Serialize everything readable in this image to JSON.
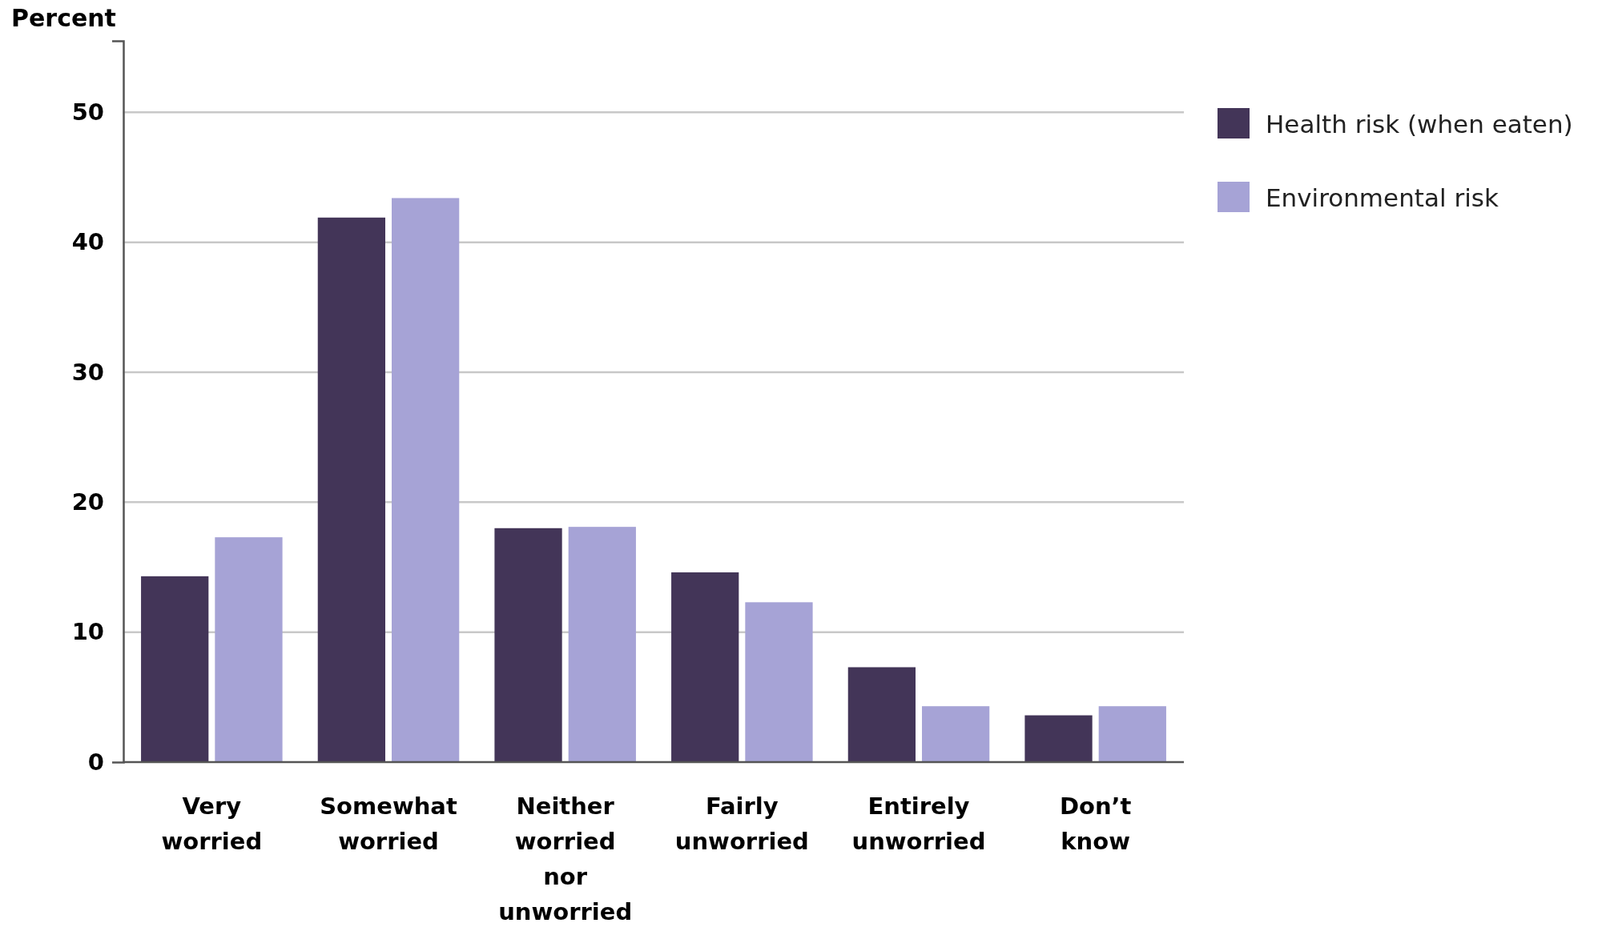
{
  "chart_data": {
    "type": "bar",
    "ylabel": "Percent",
    "categories": [
      "Very worried",
      "Somewhat worried",
      "Neither worried nor unworried",
      "Fairly unworried",
      "Entirely unworried",
      "Don’t know"
    ],
    "series": [
      {
        "name": "Health risk (when eaten)",
        "color": "#433558",
        "values": [
          14.3,
          41.9,
          18.0,
          14.6,
          7.3,
          3.6
        ]
      },
      {
        "name": "Environmental risk",
        "color": "#a6a3d6",
        "values": [
          17.3,
          43.4,
          18.1,
          12.3,
          4.3,
          4.3
        ]
      }
    ],
    "ylim": [
      0,
      55.5
    ],
    "yticks": [
      0,
      10,
      20,
      30,
      40,
      50
    ],
    "grid": "y",
    "legend": "top right"
  }
}
